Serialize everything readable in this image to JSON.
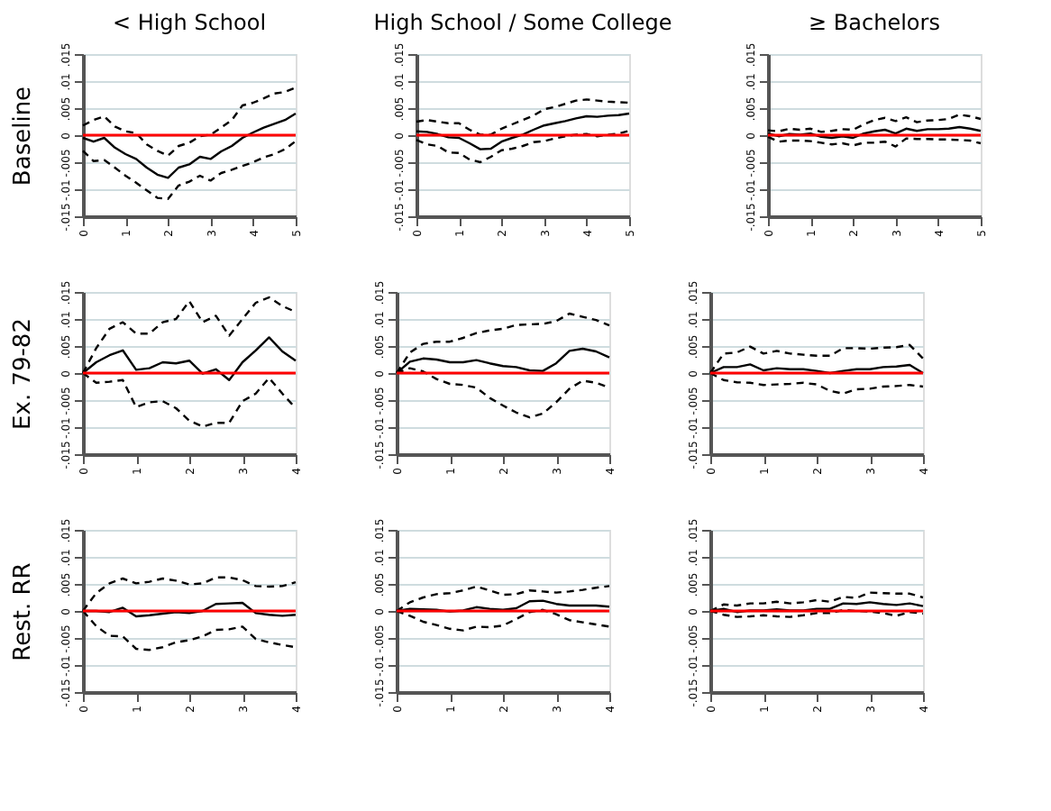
{
  "chart_data": [
    {
      "type": "line",
      "title": "< High School",
      "ylabel": "Baseline",
      "x": [
        0,
        0.25,
        0.5,
        0.75,
        1,
        1.25,
        1.5,
        1.75,
        2,
        2.25,
        2.5,
        2.75,
        3,
        3.25,
        3.5,
        3.75,
        4,
        4.25,
        4.5,
        4.75,
        5
      ],
      "xlim": [
        0,
        5
      ],
      "xticks": [
        0,
        1,
        2,
        3,
        4,
        5
      ],
      "ylim": [
        -0.015,
        0.015
      ],
      "yticks": [
        {
          "value": -0.015,
          "label": "-.015"
        },
        {
          "value": -0.01,
          "label": "-.01"
        },
        {
          "value": -0.005,
          "label": "-.005"
        },
        {
          "value": 0,
          "label": "0"
        },
        {
          "value": 0.005,
          "label": ".005"
        },
        {
          "value": 0.01,
          "label": ".01"
        },
        {
          "value": 0.015,
          "label": ".015"
        }
      ],
      "grid": "y",
      "ref_lines": [
        {
          "axis": "y",
          "value": 0,
          "color": "#ff0000"
        }
      ],
      "series": [
        {
          "color": "#000000",
          "line_style": "solid",
          "values": [
            -0.0005,
            -0.0012,
            -0.0005,
            -0.0023,
            -0.0035,
            -0.0044,
            -0.006,
            -0.0073,
            -0.0079,
            -0.006,
            -0.0054,
            -0.004,
            -0.0044,
            -0.003,
            -0.002,
            -0.0005,
            0.0005,
            0.0014,
            0.0021,
            0.0028,
            0.004
          ]
        },
        {
          "color": "#000000",
          "line_style": "dashed",
          "values": [
            0.0018,
            0.0028,
            0.0035,
            0.0016,
            0.0007,
            0.0004,
            -0.0017,
            -0.0029,
            -0.0038,
            -0.002,
            -0.0014,
            -0.0002,
            0.0001,
            0.0014,
            0.0028,
            0.0055,
            0.006,
            0.0068,
            0.0077,
            0.008,
            0.0088
          ]
        },
        {
          "color": "#000000",
          "line_style": "dashed",
          "values": [
            -0.0029,
            -0.0048,
            -0.0046,
            -0.006,
            -0.0075,
            -0.0088,
            -0.0102,
            -0.0116,
            -0.0118,
            -0.0093,
            -0.0086,
            -0.0075,
            -0.0084,
            -0.007,
            -0.0064,
            -0.0057,
            -0.005,
            -0.0041,
            -0.0035,
            -0.0026,
            -0.0011
          ]
        }
      ]
    },
    {
      "type": "line",
      "title": "High School / Some College",
      "x": [
        0,
        0.25,
        0.5,
        0.75,
        1,
        1.25,
        1.5,
        1.75,
        2,
        2.25,
        2.5,
        2.75,
        3,
        3.25,
        3.5,
        3.75,
        4,
        4.25,
        4.5,
        4.75,
        5
      ],
      "xlim": [
        0,
        5
      ],
      "xticks": [
        0,
        1,
        2,
        3,
        4,
        5
      ],
      "ylim": [
        -0.015,
        0.015
      ],
      "yticks": [
        {
          "value": -0.015,
          "label": "-.015"
        },
        {
          "value": -0.01,
          "label": "-.01"
        },
        {
          "value": -0.005,
          "label": "-.005"
        },
        {
          "value": 0,
          "label": "0"
        },
        {
          "value": 0.005,
          "label": ".005"
        },
        {
          "value": 0.01,
          "label": ".01"
        },
        {
          "value": 0.015,
          "label": ".015"
        }
      ],
      "grid": "y",
      "ref_lines": [
        {
          "axis": "y",
          "value": 0,
          "color": "#ff0000"
        }
      ],
      "series": [
        {
          "color": "#000000",
          "line_style": "solid",
          "values": [
            0.0007,
            0.0006,
            0.0002,
            -0.0004,
            -0.0005,
            -0.0015,
            -0.0026,
            -0.0025,
            -0.0012,
            -0.0005,
            0.0001,
            0.001,
            0.0018,
            0.0022,
            0.0026,
            0.0031,
            0.0035,
            0.0034,
            0.0036,
            0.0037,
            0.004
          ]
        },
        {
          "color": "#000000",
          "line_style": "dashed",
          "values": [
            0.0025,
            0.0028,
            0.0025,
            0.0022,
            0.0022,
            0.001,
            0.0001,
            0.0001,
            0.0012,
            0.002,
            0.0028,
            0.0036,
            0.0048,
            0.0052,
            0.0058,
            0.0064,
            0.0066,
            0.0064,
            0.0062,
            0.0061,
            0.006
          ]
        },
        {
          "color": "#000000",
          "line_style": "dashed",
          "values": [
            -0.0009,
            -0.0017,
            -0.002,
            -0.0032,
            -0.0033,
            -0.0045,
            -0.005,
            -0.004,
            -0.0028,
            -0.0025,
            -0.002,
            -0.0013,
            -0.0011,
            -0.0006,
            -0.0002,
            0.0001,
            0.0002,
            -0.0002,
            0.0001,
            0.0003,
            0.0008
          ]
        }
      ]
    },
    {
      "type": "line",
      "title": "≥ Bachelors",
      "x": [
        0,
        0.25,
        0.5,
        0.75,
        1,
        1.25,
        1.5,
        1.75,
        2,
        2.25,
        2.5,
        2.75,
        3,
        3.25,
        3.5,
        3.75,
        4,
        4.25,
        4.5,
        4.75,
        5
      ],
      "xlim": [
        0,
        5
      ],
      "xticks": [
        0,
        1,
        2,
        3,
        4,
        5
      ],
      "ylim": [
        -0.015,
        0.015
      ],
      "yticks": [
        {
          "value": -0.015,
          "label": "-.015"
        },
        {
          "value": -0.01,
          "label": "-.01"
        },
        {
          "value": -0.005,
          "label": "-.005"
        },
        {
          "value": 0,
          "label": "0"
        },
        {
          "value": 0.005,
          "label": ".005"
        },
        {
          "value": 0.01,
          "label": ".01"
        },
        {
          "value": 0.015,
          "label": ".015"
        }
      ],
      "grid": "y",
      "ref_lines": [
        {
          "axis": "y",
          "value": 0,
          "color": "#ff0000"
        }
      ],
      "series": [
        {
          "color": "#000000",
          "line_style": "solid",
          "values": [
            0.0003,
            -0.0002,
            0.0002,
            0.0001,
            0.0003,
            -0.0003,
            -0.0005,
            -0.0002,
            -0.0005,
            0.0003,
            0.0007,
            0.001,
            0.0003,
            0.0012,
            0.0008,
            0.0011,
            0.0011,
            0.0012,
            0.0015,
            0.0012,
            0.0008
          ]
        },
        {
          "color": "#000000",
          "line_style": "dashed",
          "values": [
            0.0009,
            0.0007,
            0.0012,
            0.001,
            0.0012,
            0.0006,
            0.0008,
            0.0011,
            0.001,
            0.002,
            0.0028,
            0.0032,
            0.0026,
            0.0033,
            0.0024,
            0.0027,
            0.0028,
            0.003,
            0.0038,
            0.0035,
            0.003
          ]
        },
        {
          "color": "#000000",
          "line_style": "dashed",
          "values": [
            -0.0003,
            -0.0012,
            -0.001,
            -0.001,
            -0.0011,
            -0.0014,
            -0.0017,
            -0.0015,
            -0.0019,
            -0.0014,
            -0.0014,
            -0.0012,
            -0.0021,
            -0.0006,
            -0.0007,
            -0.0007,
            -0.0008,
            -0.0008,
            -0.0009,
            -0.001,
            -0.0015
          ]
        }
      ]
    },
    {
      "type": "line",
      "ylabel": "Ex. 79-82",
      "x": [
        0,
        0.25,
        0.5,
        0.75,
        1,
        1.25,
        1.5,
        1.75,
        2,
        2.25,
        2.5,
        2.75,
        3,
        3.25,
        3.5,
        3.75,
        4
      ],
      "xlim": [
        0,
        4
      ],
      "xticks": [
        0,
        1,
        2,
        3,
        4
      ],
      "ylim": [
        -0.015,
        0.015
      ],
      "yticks": [
        {
          "value": -0.015,
          "label": "-.015"
        },
        {
          "value": -0.01,
          "label": "-.01"
        },
        {
          "value": -0.005,
          "label": "-.005"
        },
        {
          "value": 0,
          "label": "0"
        },
        {
          "value": 0.005,
          "label": ".005"
        },
        {
          "value": 0.01,
          "label": ".01"
        },
        {
          "value": 0.015,
          "label": ".015"
        }
      ],
      "grid": "y",
      "ref_lines": [
        {
          "axis": "y",
          "value": 0,
          "color": "#ff0000"
        }
      ],
      "series": [
        {
          "color": "#000000",
          "line_style": "solid",
          "values": [
            0,
            0.002,
            0.0033,
            0.0042,
            0.0006,
            0.0009,
            0.002,
            0.0018,
            0.0023,
            -0.0001,
            0.0007,
            -0.0013,
            0.002,
            0.0042,
            0.0066,
            0.004,
            0.0023
          ]
        },
        {
          "color": "#000000",
          "line_style": "dashed",
          "values": [
            0,
            0.0046,
            0.0082,
            0.0094,
            0.0073,
            0.0073,
            0.0094,
            0.01,
            0.0133,
            0.0094,
            0.0106,
            0.0069,
            0.01,
            0.013,
            0.014,
            0.0124,
            0.0113
          ]
        },
        {
          "color": "#000000",
          "line_style": "dashed",
          "values": [
            0,
            -0.0018,
            -0.0016,
            -0.0013,
            -0.0063,
            -0.0054,
            -0.0052,
            -0.0065,
            -0.0088,
            -0.0099,
            -0.0092,
            -0.0092,
            -0.0052,
            -0.0038,
            -0.0009,
            -0.0038,
            -0.0065
          ]
        }
      ]
    },
    {
      "type": "line",
      "x": [
        0,
        0.25,
        0.5,
        0.75,
        1,
        1.25,
        1.5,
        1.75,
        2,
        2.25,
        2.5,
        2.75,
        3,
        3.25,
        3.5,
        3.75,
        4
      ],
      "xlim": [
        0,
        4
      ],
      "xticks": [
        0,
        1,
        2,
        3,
        4
      ],
      "ylim": [
        -0.015,
        0.015
      ],
      "yticks": [
        {
          "value": -0.015,
          "label": "-.015"
        },
        {
          "value": -0.01,
          "label": "-.01"
        },
        {
          "value": -0.005,
          "label": "-.005"
        },
        {
          "value": 0,
          "label": "0"
        },
        {
          "value": 0.005,
          "label": ".005"
        },
        {
          "value": 0.01,
          "label": ".01"
        },
        {
          "value": 0.015,
          "label": ".015"
        }
      ],
      "grid": "y",
      "ref_lines": [
        {
          "axis": "y",
          "value": 0,
          "color": "#ff0000"
        }
      ],
      "series": [
        {
          "color": "#000000",
          "line_style": "solid",
          "values": [
            0,
            0.0021,
            0.0027,
            0.0025,
            0.002,
            0.002,
            0.0024,
            0.0018,
            0.0013,
            0.0011,
            0.0005,
            0.0004,
            0.0018,
            0.0041,
            0.0045,
            0.004,
            0.0029
          ]
        },
        {
          "color": "#000000",
          "line_style": "dashed",
          "values": [
            0,
            0.0038,
            0.0054,
            0.0058,
            0.0058,
            0.0065,
            0.0074,
            0.0079,
            0.0082,
            0.0089,
            0.009,
            0.0091,
            0.0096,
            0.011,
            0.0104,
            0.0098,
            0.0088
          ]
        },
        {
          "color": "#000000",
          "line_style": "dashed",
          "values": [
            0,
            0.0009,
            0.0003,
            -0.0011,
            -0.002,
            -0.0022,
            -0.0027,
            -0.0046,
            -0.006,
            -0.0073,
            -0.0082,
            -0.0075,
            -0.0054,
            -0.0029,
            -0.0014,
            -0.0018,
            -0.0027
          ]
        }
      ]
    },
    {
      "type": "line",
      "x": [
        0,
        0.25,
        0.5,
        0.75,
        1,
        1.25,
        1.5,
        1.75,
        2,
        2.25,
        2.5,
        2.75,
        3,
        3.25,
        3.5,
        3.75,
        4
      ],
      "xlim": [
        0,
        4
      ],
      "xticks": [
        0,
        1,
        2,
        3,
        4
      ],
      "ylim": [
        -0.015,
        0.015
      ],
      "yticks": [
        {
          "value": -0.015,
          "label": "-.015"
        },
        {
          "value": -0.01,
          "label": "-.01"
        },
        {
          "value": -0.005,
          "label": "-.005"
        },
        {
          "value": 0,
          "label": "0"
        },
        {
          "value": 0.005,
          "label": ".005"
        },
        {
          "value": 0.01,
          "label": ".01"
        },
        {
          "value": 0.015,
          "label": ".015"
        }
      ],
      "grid": "y",
      "ref_lines": [
        {
          "axis": "y",
          "value": 0,
          "color": "#ff0000"
        }
      ],
      "series": [
        {
          "color": "#000000",
          "line_style": "solid",
          "values": [
            0,
            0.0011,
            0.0011,
            0.0016,
            0.0005,
            0.0009,
            0.0007,
            0.0007,
            0.0004,
            0,
            0.0004,
            0.0007,
            0.0007,
            0.0011,
            0.0012,
            0.0015,
            0
          ]
        },
        {
          "color": "#000000",
          "line_style": "dashed",
          "values": [
            0,
            0.0036,
            0.0038,
            0.0049,
            0.0036,
            0.0041,
            0.0036,
            0.0034,
            0.0032,
            0.0032,
            0.0046,
            0.0046,
            0.0045,
            0.0047,
            0.0048,
            0.0052,
            0.0027
          ]
        },
        {
          "color": "#000000",
          "line_style": "dashed",
          "values": [
            0,
            -0.0013,
            -0.0017,
            -0.0018,
            -0.0022,
            -0.0021,
            -0.002,
            -0.0018,
            -0.0021,
            -0.0033,
            -0.0038,
            -0.003,
            -0.0029,
            -0.0025,
            -0.0024,
            -0.0022,
            -0.0025
          ]
        }
      ]
    },
    {
      "type": "line",
      "ylabel": "Rest. RR",
      "x": [
        0,
        0.25,
        0.5,
        0.75,
        1,
        1.25,
        1.5,
        1.75,
        2,
        2.25,
        2.5,
        2.75,
        3,
        3.25,
        3.5,
        3.75,
        4
      ],
      "xlim": [
        0,
        4
      ],
      "xticks": [
        0,
        1,
        2,
        3,
        4
      ],
      "ylim": [
        -0.015,
        0.015
      ],
      "yticks": [
        {
          "value": -0.015,
          "label": "-.015"
        },
        {
          "value": -0.01,
          "label": "-.01"
        },
        {
          "value": -0.005,
          "label": "-.005"
        },
        {
          "value": 0,
          "label": "0"
        },
        {
          "value": 0.005,
          "label": ".005"
        },
        {
          "value": 0.01,
          "label": ".01"
        },
        {
          "value": 0.015,
          "label": ".015"
        }
      ],
      "grid": "y",
      "ref_lines": [
        {
          "axis": "y",
          "value": 0,
          "color": "#ff0000"
        }
      ],
      "series": [
        {
          "color": "#000000",
          "line_style": "solid",
          "values": [
            0,
            0,
            -0.0002,
            0.0006,
            -0.001,
            -0.0008,
            -0.0005,
            -0.0002,
            -0.0004,
            0,
            0.0013,
            0.0014,
            0.0015,
            -0.0004,
            -0.0007,
            -0.0009,
            -0.0007
          ]
        },
        {
          "color": "#000000",
          "line_style": "dashed",
          "values": [
            0,
            0.0033,
            0.0051,
            0.006,
            0.0051,
            0.0054,
            0.006,
            0.0056,
            0.0049,
            0.0051,
            0.0062,
            0.0062,
            0.0057,
            0.0046,
            0.0045,
            0.0046,
            0.0053
          ]
        },
        {
          "color": "#000000",
          "line_style": "dashed",
          "values": [
            0,
            -0.0028,
            -0.0046,
            -0.0047,
            -0.007,
            -0.0072,
            -0.0067,
            -0.0058,
            -0.0054,
            -0.0047,
            -0.0035,
            -0.0034,
            -0.0029,
            -0.0052,
            -0.0058,
            -0.0063,
            -0.0067
          ]
        }
      ]
    },
    {
      "type": "line",
      "x": [
        0,
        0.25,
        0.5,
        0.75,
        1,
        1.25,
        1.5,
        1.75,
        2,
        2.25,
        2.5,
        2.75,
        3,
        3.25,
        3.5,
        3.75,
        4
      ],
      "xlim": [
        0,
        4
      ],
      "xticks": [
        0,
        1,
        2,
        3,
        4
      ],
      "ylim": [
        -0.015,
        0.015
      ],
      "yticks": [
        {
          "value": -0.015,
          "label": "-.015"
        },
        {
          "value": -0.01,
          "label": "-.01"
        },
        {
          "value": -0.005,
          "label": "-.005"
        },
        {
          "value": 0,
          "label": "0"
        },
        {
          "value": 0.005,
          "label": ".005"
        },
        {
          "value": 0.01,
          "label": ".01"
        },
        {
          "value": 0.015,
          "label": ".015"
        }
      ],
      "grid": "y",
      "ref_lines": [
        {
          "axis": "y",
          "value": 0,
          "color": "#ff0000"
        }
      ],
      "series": [
        {
          "color": "#000000",
          "line_style": "solid",
          "values": [
            0,
            0.0004,
            0.0003,
            0.0002,
            -0.0001,
            0.0001,
            0.0007,
            0.0004,
            0.0002,
            0.0005,
            0.0018,
            0.0019,
            0.0013,
            0.001,
            0.001,
            0.001,
            0.0008
          ]
        },
        {
          "color": "#000000",
          "line_style": "dashed",
          "values": [
            0,
            0.0016,
            0.0025,
            0.0031,
            0.0033,
            0.0038,
            0.0045,
            0.0038,
            0.003,
            0.0031,
            0.0038,
            0.0036,
            0.0034,
            0.0036,
            0.0039,
            0.0043,
            0.0046
          ]
        },
        {
          "color": "#000000",
          "line_style": "dashed",
          "values": [
            0,
            -0.0009,
            -0.002,
            -0.0026,
            -0.0033,
            -0.0036,
            -0.0029,
            -0.003,
            -0.0027,
            -0.0015,
            -0.0002,
            0.0002,
            -0.0006,
            -0.0017,
            -0.0021,
            -0.0025,
            -0.0029
          ]
        }
      ]
    },
    {
      "type": "line",
      "x": [
        0,
        0.25,
        0.5,
        0.75,
        1,
        1.25,
        1.5,
        1.75,
        2,
        2.25,
        2.5,
        2.75,
        3,
        3.25,
        3.5,
        3.75,
        4
      ],
      "xlim": [
        0,
        4
      ],
      "xticks": [
        0,
        1,
        2,
        3,
        4
      ],
      "ylim": [
        -0.015,
        0.015
      ],
      "yticks": [
        {
          "value": -0.015,
          "label": "-.015"
        },
        {
          "value": -0.01,
          "label": "-.01"
        },
        {
          "value": -0.005,
          "label": "-.005"
        },
        {
          "value": 0,
          "label": "0"
        },
        {
          "value": 0.005,
          "label": ".005"
        },
        {
          "value": 0.01,
          "label": ".01"
        },
        {
          "value": 0.015,
          "label": ".015"
        }
      ],
      "grid": "y",
      "ref_lines": [
        {
          "axis": "y",
          "value": 0,
          "color": "#ff0000"
        }
      ],
      "series": [
        {
          "color": "#000000",
          "line_style": "solid",
          "values": [
            0,
            0.0004,
            -0.0002,
            0.0001,
            0.0001,
            0.0003,
            0.0001,
            0.0001,
            0.0004,
            0.0004,
            0.0014,
            0.0013,
            0.0016,
            0.0013,
            0.0011,
            0.0014,
            0.0009
          ]
        },
        {
          "color": "#000000",
          "line_style": "dashed",
          "values": [
            0,
            0.0012,
            0.001,
            0.0014,
            0.0014,
            0.0017,
            0.0014,
            0.0016,
            0.002,
            0.0017,
            0.0026,
            0.0024,
            0.0034,
            0.0033,
            0.0032,
            0.0032,
            0.0025
          ]
        },
        {
          "color": "#000000",
          "line_style": "dashed",
          "values": [
            0,
            -0.0007,
            -0.0011,
            -0.001,
            -0.0008,
            -0.001,
            -0.0011,
            -0.0008,
            -0.0004,
            -0.0004,
            0.0002,
            0,
            -0.0001,
            -0.0004,
            -0.0009,
            -0.0002,
            -0.0005
          ]
        }
      ]
    }
  ]
}
